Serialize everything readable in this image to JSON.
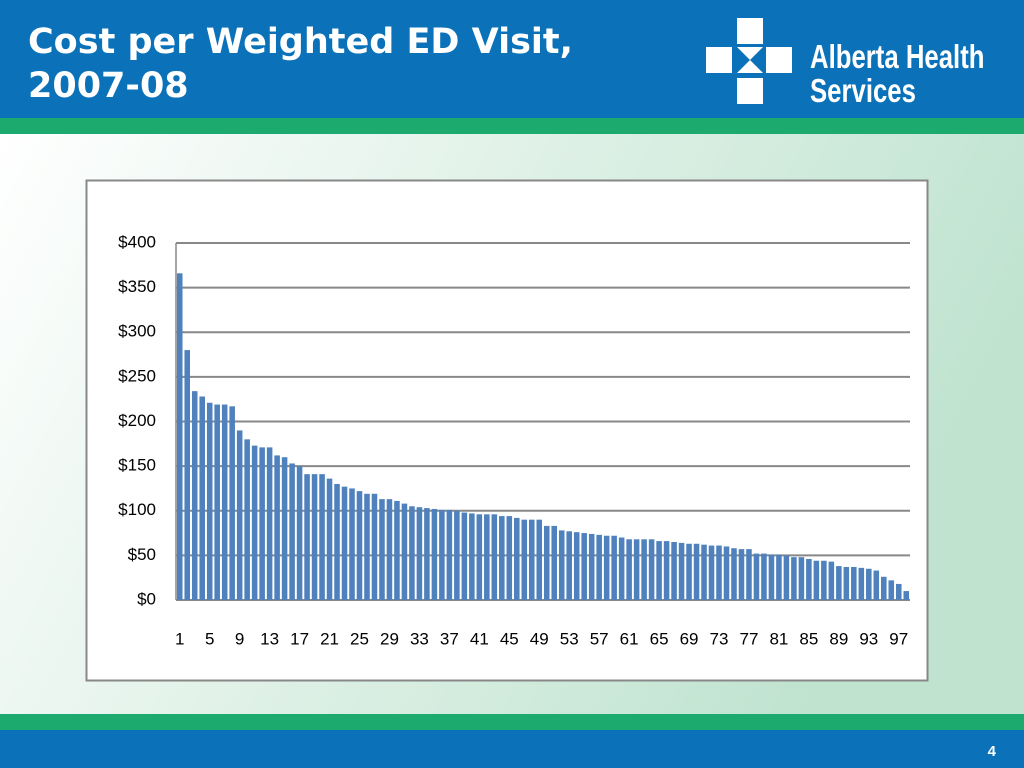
{
  "header": {
    "title": "Cost per Weighted ED Visit, 2007-08",
    "logo": "Alberta Health Services"
  },
  "footer": {
    "page": "4"
  },
  "chart_data": {
    "type": "bar",
    "color": "#4f81bd",
    "grid": true,
    "categories": [
      "1",
      null,
      null,
      null,
      "5",
      null,
      null,
      null,
      "9",
      null,
      null,
      null,
      "13",
      null,
      null,
      null,
      "17",
      null,
      null,
      null,
      "21",
      null,
      null,
      null,
      "25",
      null,
      null,
      null,
      "29",
      null,
      null,
      null,
      "33",
      null,
      null,
      null,
      "37",
      null,
      null,
      null,
      "41",
      null,
      null,
      null,
      "45",
      null,
      null,
      null,
      "49",
      null,
      null,
      null,
      "53",
      null,
      null,
      null,
      "57",
      null,
      null,
      null,
      "61",
      null,
      null,
      null,
      "65",
      null,
      null,
      null,
      "69",
      null,
      null,
      null,
      "73",
      null,
      null,
      null,
      "77",
      null,
      null,
      null,
      "81",
      null,
      null,
      null,
      "85",
      null,
      null,
      null,
      "89",
      null,
      null,
      null,
      "93",
      null,
      null,
      null,
      "97",
      null
    ],
    "values": [
      366,
      280,
      234,
      228,
      221,
      219,
      219,
      217,
      190,
      180,
      173,
      171,
      171,
      162,
      160,
      153,
      150,
      141,
      141,
      141,
      136,
      130,
      127,
      125,
      122,
      119,
      119,
      113,
      113,
      111,
      108,
      105,
      104,
      103,
      102,
      101,
      101,
      100,
      98,
      97,
      96,
      96,
      96,
      94,
      94,
      92,
      90,
      90,
      90,
      83,
      83,
      78,
      77,
      76,
      75,
      74,
      73,
      72,
      72,
      70,
      68,
      68,
      68,
      68,
      66,
      66,
      65,
      64,
      63,
      63,
      62,
      61,
      61,
      60,
      58,
      57,
      57,
      52,
      52,
      51,
      51,
      50,
      48,
      48,
      46,
      44,
      44,
      43,
      38,
      37,
      37,
      36,
      35,
      33,
      26,
      22,
      18,
      10
    ],
    "ylim": [
      0,
      400
    ],
    "yticks": [
      {
        "value": 0,
        "label": "$0"
      },
      {
        "value": 50,
        "label": "$50"
      },
      {
        "value": 100,
        "label": "$100"
      },
      {
        "value": 150,
        "label": "$150"
      },
      {
        "value": 200,
        "label": "$200"
      },
      {
        "value": 250,
        "label": "$250"
      },
      {
        "value": 300,
        "label": "$300"
      },
      {
        "value": 350,
        "label": "$350"
      },
      {
        "value": 400,
        "label": "$400"
      }
    ]
  }
}
